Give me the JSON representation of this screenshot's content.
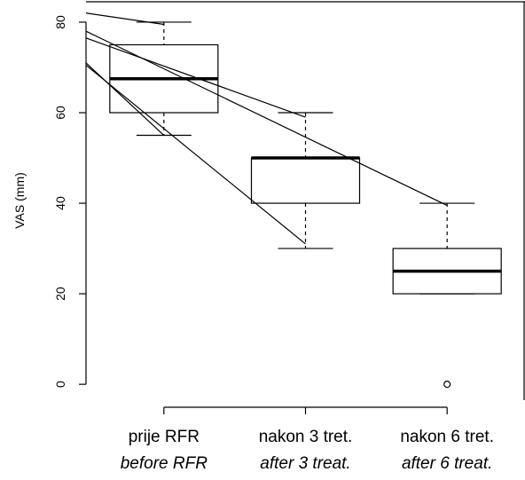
{
  "chart_data": {
    "type": "boxplot",
    "ylabel": "VAS (mm)",
    "ylim": [
      -3.5,
      84.5
    ],
    "yticks": [
      0,
      20,
      40,
      60,
      80
    ],
    "categories": [
      {
        "label": "prije RFR",
        "label_en": "before RFR"
      },
      {
        "label": "nakon 3 tret.",
        "label_en": "after 3 treat."
      },
      {
        "label": "nakon 6 tret.",
        "label_en": "after 6 treat."
      }
    ],
    "boxes": [
      {
        "whisker_low": 55,
        "q1": 60,
        "median": 67.5,
        "q3": 75,
        "whisker_high": 80,
        "outliers": []
      },
      {
        "whisker_low": 30,
        "q1": 40,
        "median": 50,
        "q3": 50,
        "whisker_high": 60,
        "outliers": []
      },
      {
        "whisker_low": 20,
        "q1": 20,
        "median": 25,
        "q3": 30,
        "whisker_high": 40,
        "outliers": [
          0
        ]
      }
    ],
    "lines": [
      {
        "from": [
          0.45,
          82
        ],
        "to": [
          1,
          79.5
        ]
      },
      {
        "from": [
          0.45,
          78
        ],
        "to": [
          3,
          39.5
        ]
      },
      {
        "from": [
          0.45,
          76.5
        ],
        "to": [
          2,
          59
        ]
      },
      {
        "from": [
          0.45,
          71
        ],
        "to": [
          1,
          55
        ]
      },
      {
        "from": [
          0.45,
          70.5
        ],
        "to": [
          2,
          31
        ]
      }
    ],
    "xlim": [
      0.45,
      3.55
    ]
  }
}
